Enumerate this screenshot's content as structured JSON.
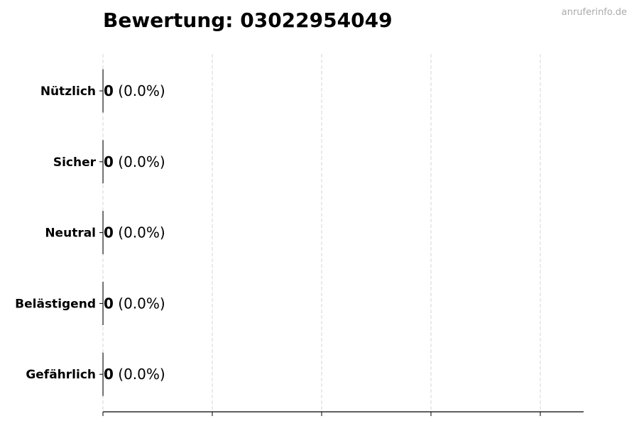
{
  "title": "Bewertung: 03022954049",
  "watermark": "anruferinfo.de",
  "chart_data": {
    "type": "bar",
    "orientation": "horizontal",
    "title": "Bewertung: 03022954049",
    "categories": [
      "Nützlich",
      "Sicher",
      "Neutral",
      "Belästigend",
      "Gefährlich"
    ],
    "values": [
      0,
      0,
      0,
      0,
      0
    ],
    "data_labels": [
      {
        "count": "0",
        "percent": "(0.0%)"
      },
      {
        "count": "0",
        "percent": "(0.0%)"
      },
      {
        "count": "0",
        "percent": "(0.0%)"
      },
      {
        "count": "0",
        "percent": "(0.0%)"
      },
      {
        "count": "0",
        "percent": "(0.0%)"
      }
    ],
    "xlabel": "",
    "ylabel": "",
    "x_tick_labels_shown": false,
    "grid": "x dashed",
    "colors": {
      "bar_edge": "#000000",
      "grid": "#cccccc",
      "axis": "#000000"
    }
  }
}
